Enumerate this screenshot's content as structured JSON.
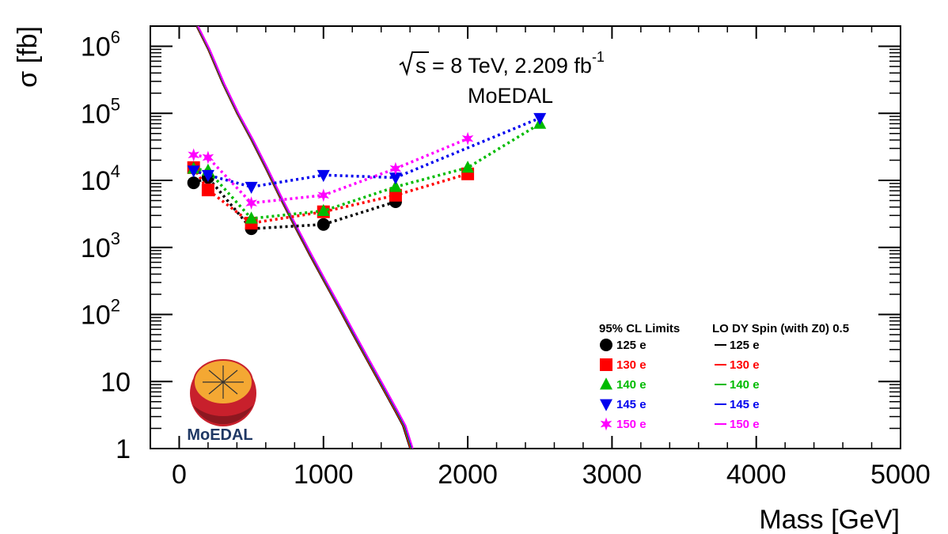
{
  "chart_data": {
    "type": "line",
    "title": "",
    "xlabel": "Mass [GeV]",
    "ylabel": "σ [fb]",
    "xlim": [
      -200,
      5000
    ],
    "ylim": [
      1,
      2000000
    ],
    "yscale": "log",
    "x_ticks": [
      {
        "value": 0,
        "label": "0"
      },
      {
        "value": 1000,
        "label": "1000"
      },
      {
        "value": 2000,
        "label": "2000"
      },
      {
        "value": 3000,
        "label": "3000"
      },
      {
        "value": 4000,
        "label": "4000"
      },
      {
        "value": 5000,
        "label": "5000"
      }
    ],
    "y_ticks": [
      {
        "value": 1,
        "base": "1",
        "exp": ""
      },
      {
        "value": 10,
        "base": "10",
        "exp": ""
      },
      {
        "value": 100,
        "base": "10",
        "exp": "2"
      },
      {
        "value": 1000,
        "base": "10",
        "exp": "3"
      },
      {
        "value": 10000,
        "base": "10",
        "exp": "4"
      },
      {
        "value": 100000,
        "base": "10",
        "exp": "5"
      },
      {
        "value": 1000000,
        "base": "10",
        "exp": "6"
      }
    ],
    "annotations": {
      "energy_prefix": "s = 8 TeV, 2.209 fb",
      "energy_exp": "-1",
      "experiment": "MoEDAL"
    },
    "legend": {
      "placement": "bottom-right",
      "limits_header": "95% CL Limits",
      "theory_header": "LO DY Spin (with Z0) 0.5"
    },
    "limit_series": [
      {
        "name": "125 e",
        "color": "#000000",
        "marker": "circle",
        "x": [
          100,
          200,
          500,
          1000,
          1500
        ],
        "y": [
          9200,
          11000,
          1900,
          2200,
          4800
        ]
      },
      {
        "name": "130 e",
        "color": "#ff0000",
        "marker": "square",
        "x": [
          100,
          200,
          500,
          1000,
          1500,
          2000
        ],
        "y": [
          15500,
          7200,
          2300,
          3400,
          6000,
          12500
        ]
      },
      {
        "name": "140 e",
        "color": "#00bb00",
        "marker": "triangle-up",
        "x": [
          100,
          200,
          500,
          1000,
          1500,
          2000,
          2500
        ],
        "y": [
          15000,
          14000,
          2700,
          3500,
          8000,
          15500,
          70000
        ]
      },
      {
        "name": "145 e",
        "color": "#0000ee",
        "marker": "triangle-down",
        "x": [
          100,
          200,
          500,
          1000,
          1500,
          2500
        ],
        "y": [
          14000,
          12000,
          8000,
          12000,
          11000,
          85000
        ]
      },
      {
        "name": "150 e",
        "color": "#ff00ff",
        "marker": "star",
        "x": [
          100,
          200,
          500,
          1000,
          1500,
          2000
        ],
        "y": [
          24000,
          22000,
          4600,
          6000,
          15000,
          42000
        ]
      }
    ],
    "theory_series": [
      {
        "name": "125 e",
        "color": "#000000",
        "offset": 0
      },
      {
        "name": "130 e",
        "color": "#ff0000",
        "offset": 4
      },
      {
        "name": "140 e",
        "color": "#00bb00",
        "offset": 9
      },
      {
        "name": "145 e",
        "color": "#0000ee",
        "offset": 13
      },
      {
        "name": "150 e",
        "color": "#ff00ff",
        "offset": 17
      }
    ],
    "theory_curve": {
      "x": [
        120,
        200,
        300,
        400,
        500,
        600,
        700,
        800,
        900,
        1000,
        1100,
        1200,
        1300,
        1400,
        1500,
        1550,
        1600
      ],
      "y": [
        2000000,
        900000,
        280000,
        100000,
        40000,
        15000,
        5400,
        2050,
        800,
        320,
        130,
        52,
        21,
        8.6,
        3.5,
        2.2,
        1.0
      ]
    },
    "logo_text": "MoEDAL"
  }
}
